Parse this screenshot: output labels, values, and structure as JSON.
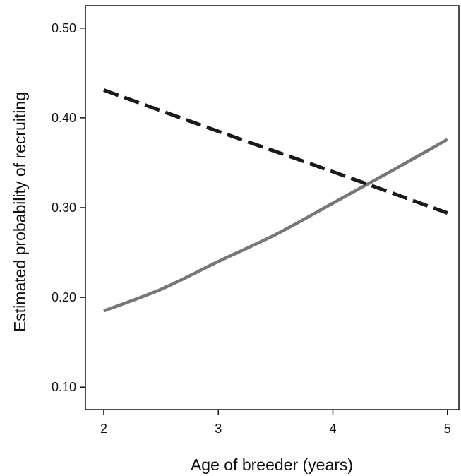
{
  "chart_data": {
    "type": "line",
    "title": "",
    "xlabel": "Age of breeder (years)",
    "ylabel": "Estimated probability of recruiting",
    "xlim": [
      1.84,
      5.1
    ],
    "ylim": [
      0.075,
      0.525
    ],
    "xticks": [
      2,
      3,
      4,
      5
    ],
    "xtick_labels": [
      "2",
      "3",
      "4",
      "5"
    ],
    "yticks": [
      0.1,
      0.2,
      0.3,
      0.4,
      0.5
    ],
    "ytick_labels": [
      "0.10",
      "0.20",
      "0.30",
      "0.40",
      "0.50"
    ],
    "grid": false,
    "legend": false,
    "series": [
      {
        "style": "solid",
        "color": "#777777",
        "x": [
          2,
          2.5,
          3,
          3.5,
          4,
          4.5,
          5
        ],
        "values": [
          0.185,
          0.209,
          0.24,
          0.27,
          0.305,
          0.34,
          0.376
        ]
      },
      {
        "style": "dashed",
        "color": "#1a1a1a",
        "x": [
          2,
          3,
          4,
          5
        ],
        "values": [
          0.431,
          0.385,
          0.34,
          0.294
        ]
      }
    ]
  }
}
